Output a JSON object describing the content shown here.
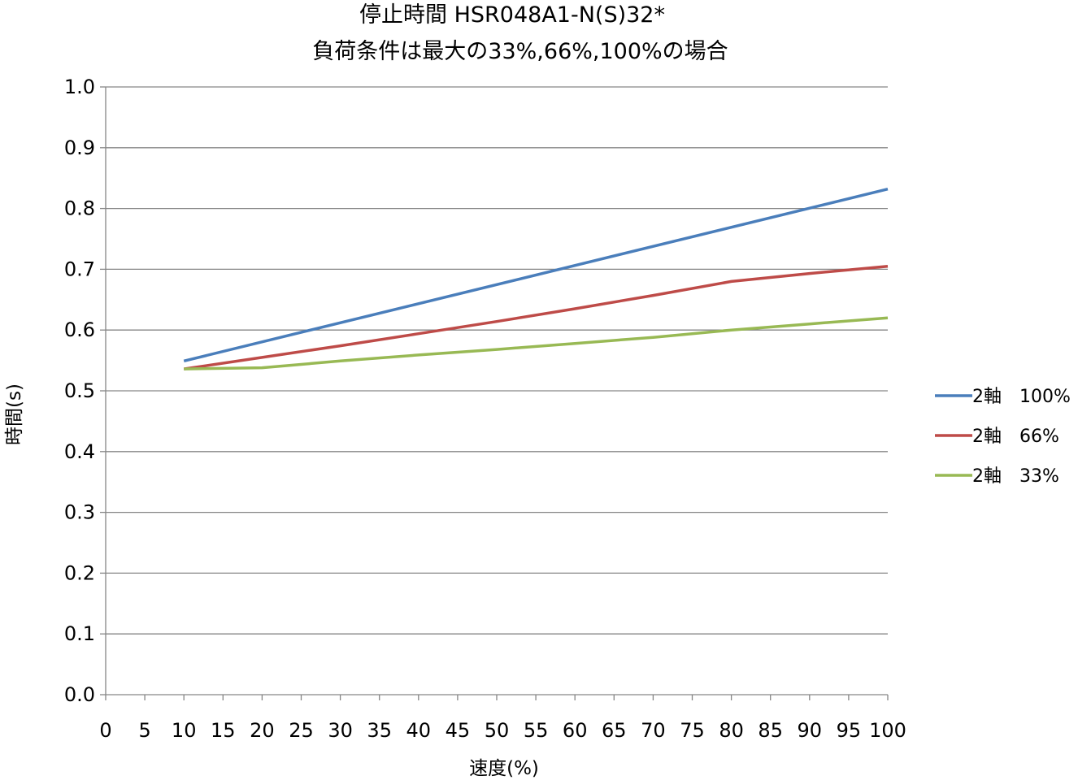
{
  "chart_data": {
    "type": "line",
    "title": "停止時間 HSR048A1-N(S)32*",
    "subtitle": "負荷条件は最大の33%,66%,100%の場合",
    "xlabel": "速度(%)",
    "ylabel": "時間(s)",
    "xlim": [
      0,
      100
    ],
    "ylim": [
      0,
      1.0
    ],
    "xticks": [
      "0",
      "5",
      "10",
      "15",
      "20",
      "25",
      "30",
      "35",
      "40",
      "45",
      "50",
      "55",
      "60",
      "65",
      "70",
      "75",
      "80",
      "85",
      "90",
      "95",
      "100"
    ],
    "yticks": [
      "0.0",
      "0.1",
      "0.2",
      "0.3",
      "0.4",
      "0.5",
      "0.6",
      "0.7",
      "0.8",
      "0.9",
      "1.0"
    ],
    "grid": "horizontal",
    "legend_position": "right",
    "series": [
      {
        "name": "2軸　100%",
        "color": "#4a7ebb",
        "points": [
          [
            10,
            0.549
          ],
          [
            100,
            0.832
          ]
        ]
      },
      {
        "name": "2軸　66%",
        "color": "#be4b48",
        "points": [
          [
            10,
            0.536
          ],
          [
            20,
            0.555
          ],
          [
            30,
            0.574
          ],
          [
            40,
            0.594
          ],
          [
            50,
            0.614
          ],
          [
            60,
            0.635
          ],
          [
            70,
            0.657
          ],
          [
            80,
            0.68
          ],
          [
            90,
            0.693
          ],
          [
            100,
            0.705
          ]
        ]
      },
      {
        "name": "2軸　33%",
        "color": "#98b954",
        "points": [
          [
            10,
            0.536
          ],
          [
            20,
            0.538
          ],
          [
            30,
            0.549
          ],
          [
            40,
            0.559
          ],
          [
            50,
            0.568
          ],
          [
            60,
            0.578
          ],
          [
            70,
            0.588
          ],
          [
            80,
            0.6
          ],
          [
            90,
            0.61
          ],
          [
            100,
            0.62
          ]
        ]
      }
    ]
  }
}
